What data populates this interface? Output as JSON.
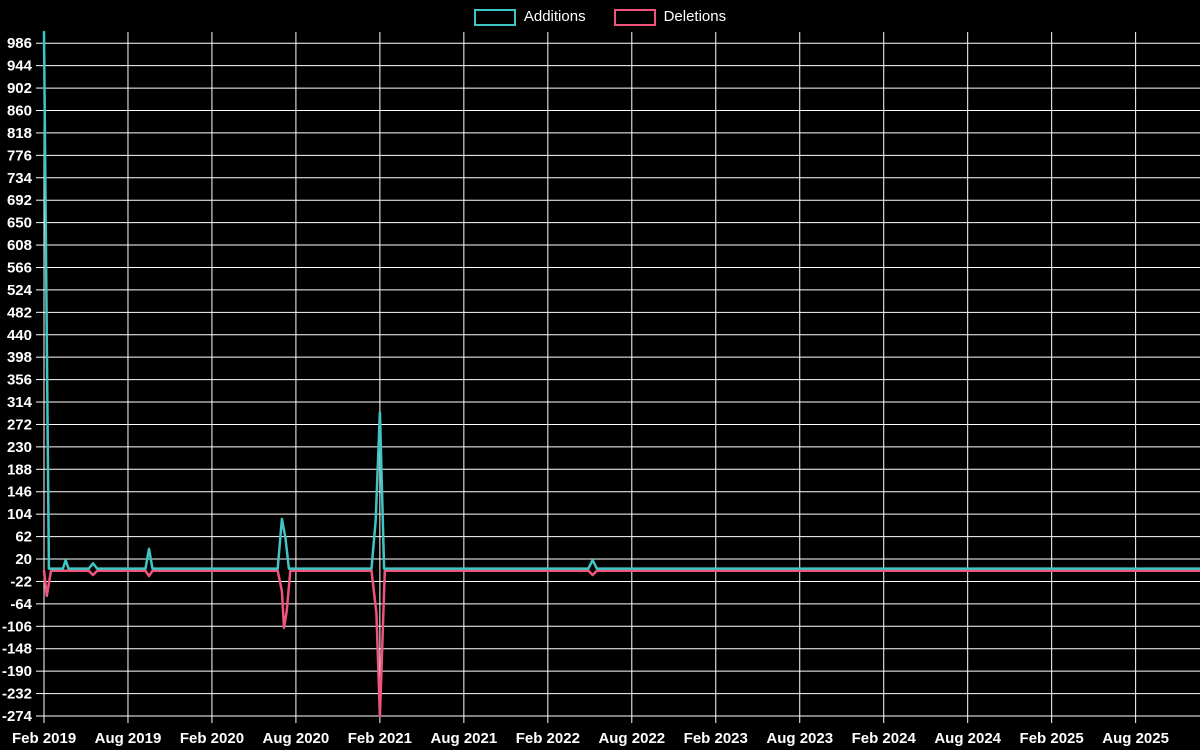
{
  "chart_data": {
    "type": "line",
    "title": "",
    "background": "#000000",
    "grid": true,
    "grid_color": "#ffffff",
    "text_color": "#ffffff",
    "legend_position": "top-center",
    "x_ticks": [
      "Feb 2019",
      "Aug 2019",
      "Feb 2020",
      "Aug 2020",
      "Feb 2021",
      "Aug 2021",
      "Feb 2022",
      "Aug 2022",
      "Feb 2023",
      "Aug 2023",
      "Feb 2024",
      "Aug 2024",
      "Feb 2025",
      "Aug 2025"
    ],
    "x_tick_interval_months": 6,
    "x_range_months": [
      0,
      82.6
    ],
    "y_ticks": [
      986,
      944,
      902,
      860,
      818,
      776,
      734,
      692,
      650,
      608,
      566,
      524,
      482,
      440,
      398,
      356,
      314,
      272,
      230,
      188,
      146,
      104,
      62,
      20,
      -22,
      -64,
      -106,
      -148,
      -190,
      -232,
      -274
    ],
    "ylim": [
      -274,
      1007
    ],
    "series": [
      {
        "name": "Additions",
        "color": "#3fc5c4",
        "points": [
          [
            0,
            1007
          ],
          [
            0.35,
            2
          ],
          [
            1.35,
            2
          ],
          [
            1.55,
            18
          ],
          [
            1.75,
            2
          ],
          [
            3.2,
            2
          ],
          [
            3.5,
            12
          ],
          [
            3.8,
            2
          ],
          [
            7.25,
            2
          ],
          [
            7.5,
            39
          ],
          [
            7.75,
            2
          ],
          [
            16.7,
            2
          ],
          [
            17.0,
            95
          ],
          [
            17.25,
            60
          ],
          [
            17.5,
            2
          ],
          [
            23.4,
            2
          ],
          [
            23.7,
            93
          ],
          [
            24.0,
            295
          ],
          [
            24.3,
            2
          ],
          [
            38.9,
            2
          ],
          [
            39.2,
            18
          ],
          [
            39.5,
            2
          ],
          [
            82.6,
            2
          ]
        ]
      },
      {
        "name": "Deletions",
        "color": "#f0547c",
        "points": [
          [
            0,
            -2
          ],
          [
            0.2,
            -49
          ],
          [
            0.5,
            -2
          ],
          [
            3.2,
            -2
          ],
          [
            3.5,
            -10
          ],
          [
            3.8,
            -2
          ],
          [
            7.25,
            -2
          ],
          [
            7.5,
            -12
          ],
          [
            7.75,
            -2
          ],
          [
            16.7,
            -2
          ],
          [
            17.0,
            -40
          ],
          [
            17.15,
            -109
          ],
          [
            17.35,
            -76
          ],
          [
            17.6,
            -2
          ],
          [
            23.4,
            -2
          ],
          [
            23.75,
            -81
          ],
          [
            24.0,
            -274
          ],
          [
            24.35,
            -2
          ],
          [
            38.9,
            -2
          ],
          [
            39.2,
            -10
          ],
          [
            39.5,
            -2
          ],
          [
            82.6,
            -2
          ]
        ]
      }
    ]
  }
}
